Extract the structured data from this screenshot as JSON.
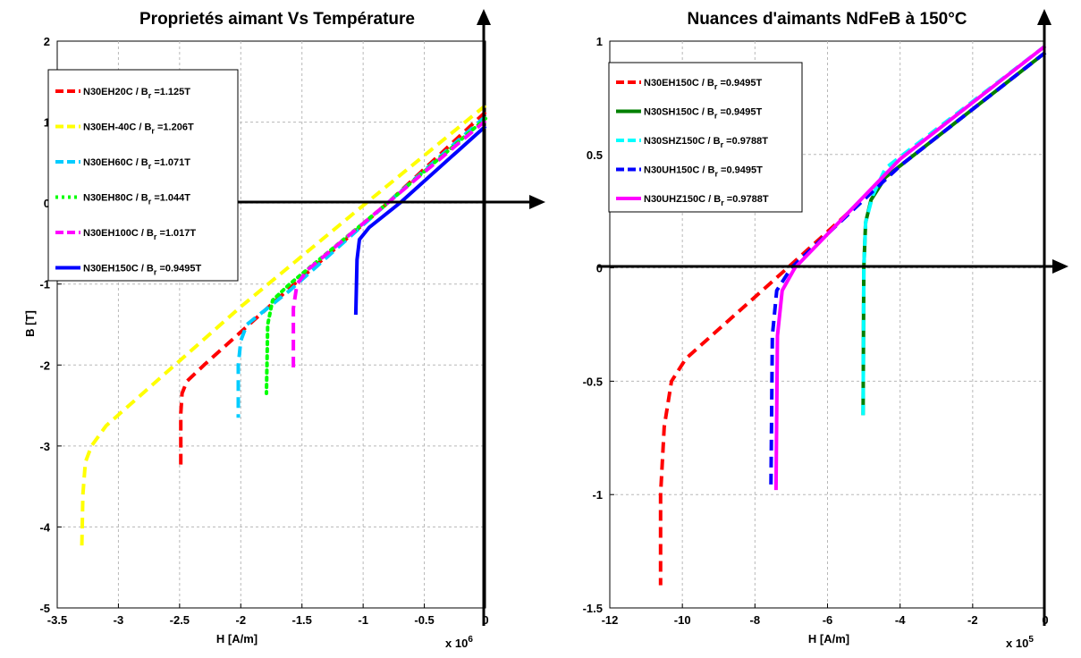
{
  "chart_data": [
    {
      "type": "line",
      "title": "Proprietés aimant Vs Température",
      "xlabel": "H [A/m]",
      "ylabel": "B [T]",
      "x_multiplier": "x 10^6",
      "xlim": [
        -3.5,
        0
      ],
      "ylim": [
        -5,
        2
      ],
      "x_ticks": [
        -3.5,
        -3,
        -2.5,
        -2,
        -1.5,
        -1,
        -0.5,
        0
      ],
      "x_tick_labels": [
        "-3.5",
        "-3",
        "-2.5",
        "-2",
        "-1.5",
        "-1",
        "-0.5",
        "0"
      ],
      "y_ticks": [
        -5,
        -4,
        -3,
        -2,
        -1,
        0,
        1,
        2
      ],
      "y_tick_labels": [
        "-5",
        "-4",
        "-3",
        "-2",
        "-1",
        "0",
        "1",
        "2"
      ],
      "grid": true,
      "legend_position": "top-left",
      "series": [
        {
          "name": "N30EH20C / B_r =1.125T",
          "label_main": "N30EH20C / B",
          "label_sub": "r",
          "label_tail": " =1.125T",
          "color": "#ff0000",
          "style": "dashed",
          "x": [
            0,
            -0.8,
            -1.6,
            -2.3,
            -2.44,
            -2.48,
            -2.49,
            -2.49
          ],
          "y": [
            1.125,
            0.0,
            -1.05,
            -2.0,
            -2.2,
            -2.35,
            -2.6,
            -3.25
          ]
        },
        {
          "name": "N30EH-40C / B_r =1.206T",
          "label_main": "N30EH-40C / B",
          "label_sub": "r",
          "label_tail": " =1.206T",
          "color": "#ffff00",
          "style": "dashed",
          "x": [
            0,
            -1.0,
            -2.0,
            -3.1,
            -3.22,
            -3.27,
            -3.29,
            -3.3
          ],
          "y": [
            1.206,
            -0.03,
            -1.28,
            -2.75,
            -3.0,
            -3.2,
            -3.6,
            -4.3
          ]
        },
        {
          "name": "N30EH60C / B_r =1.071T",
          "label_main": "N30EH60C / B",
          "label_sub": "r",
          "label_tail": " =1.071T",
          "color": "#00ccff",
          "style": "dashed",
          "x": [
            0,
            -0.8,
            -1.6,
            -1.95,
            -2.0,
            -2.02,
            -2.02
          ],
          "y": [
            1.071,
            0.0,
            -1.08,
            -1.5,
            -1.7,
            -2.0,
            -2.65
          ]
        },
        {
          "name": "N30EH80C / B_r =1.044T",
          "label_main": "N30EH80C / B",
          "label_sub": "r",
          "label_tail": " =1.044T",
          "color": "#00ff00",
          "style": "dotted",
          "x": [
            0,
            -0.8,
            -1.6,
            -1.74,
            -1.78,
            -1.79
          ],
          "y": [
            1.044,
            0.0,
            -1.0,
            -1.2,
            -1.5,
            -2.35
          ]
        },
        {
          "name": "N30EH100C / B_r =1.017T",
          "label_main": "N30EH100C / B",
          "label_sub": "r",
          "label_tail": " =1.017T",
          "color": "#ff00ff",
          "style": "dashed",
          "x": [
            0,
            -0.8,
            -1.45,
            -1.54,
            -1.57,
            -1.57
          ],
          "y": [
            1.017,
            0.0,
            -0.82,
            -1.0,
            -1.3,
            -2.05
          ]
        },
        {
          "name": "N30EH150C / B_r =0.9495T",
          "label_main": "N30EH150C / B",
          "label_sub": "r",
          "label_tail": " =0.9495T",
          "color": "#0000ff",
          "style": "solid",
          "x": [
            0,
            -0.7,
            -0.95,
            -1.03,
            -1.05,
            -1.06
          ],
          "y": [
            0.9495,
            0.0,
            -0.3,
            -0.45,
            -0.7,
            -1.38
          ]
        }
      ]
    },
    {
      "type": "line",
      "title": "Nuances d'aimants NdFeB à 150°C",
      "xlabel": "H [A/m]",
      "ylabel": "",
      "x_multiplier": "x 10^5",
      "xlim": [
        -12,
        0
      ],
      "ylim": [
        -1.5,
        1
      ],
      "x_ticks": [
        -12,
        -10,
        -8,
        -6,
        -4,
        -2,
        0
      ],
      "x_tick_labels": [
        "-12",
        "-10",
        "-8",
        "-6",
        "-4",
        "-2",
        "0"
      ],
      "y_ticks": [
        -1.5,
        -1,
        -0.5,
        0,
        0.5,
        1
      ],
      "y_tick_labels": [
        "-1.5",
        "-1",
        "-0.5",
        "0",
        "0.5",
        "1"
      ],
      "grid": true,
      "legend_position": "top-left",
      "series": [
        {
          "name": "N30EH150C / B_r =0.9495T",
          "label_main": "N30EH150C / B",
          "label_sub": "r",
          "label_tail": " =0.9495T",
          "color": "#ff0000",
          "style": "dashed",
          "x": [
            0,
            -4.0,
            -7.1,
            -9.9,
            -10.3,
            -10.5,
            -10.6,
            -10.6
          ],
          "y": [
            0.9495,
            0.45,
            0.0,
            -0.4,
            -0.5,
            -0.7,
            -1.0,
            -1.4
          ]
        },
        {
          "name": "N30SH150C / B_r =0.9495T",
          "label_main": "N30SH150C / B",
          "label_sub": "r",
          "label_tail": " =0.9495T",
          "color": "#008000",
          "style": "solid",
          "x": [
            0,
            -4.4,
            -4.8,
            -4.95,
            -5.0,
            -5.02
          ],
          "y": [
            0.9495,
            0.4,
            0.3,
            0.2,
            0.0,
            -0.65
          ]
        },
        {
          "name": "N30SHZ150C / B_r =0.9788T",
          "label_main": "N30SHZ150C / B",
          "label_sub": "r",
          "label_tail": " =0.9788T",
          "color": "#00ffff",
          "style": "dashed",
          "x": [
            0,
            -4.4,
            -4.75,
            -4.95,
            -5.0,
            -5.02
          ],
          "y": [
            0.9788,
            0.44,
            0.32,
            0.2,
            0.0,
            -0.65
          ]
        },
        {
          "name": "N30UH150C / B_r =0.9495T",
          "label_main": "N30UH150C / B",
          "label_sub": "r",
          "label_tail": " =0.9495T",
          "color": "#0000ff",
          "style": "dashed",
          "x": [
            0,
            -4.0,
            -7.0,
            -7.4,
            -7.52,
            -7.56
          ],
          "y": [
            0.9495,
            0.45,
            0.0,
            -0.1,
            -0.3,
            -0.98
          ]
        },
        {
          "name": "N30UHZ150C / B_r =0.9788T",
          "label_main": "N30UHZ150C / B",
          "label_sub": "r",
          "label_tail": " =0.9788T",
          "color": "#ff00ff",
          "style": "solid",
          "x": [
            0,
            -4.0,
            -6.9,
            -7.25,
            -7.38,
            -7.42
          ],
          "y": [
            0.9788,
            0.48,
            0.0,
            -0.1,
            -0.3,
            -0.98
          ]
        }
      ]
    }
  ]
}
